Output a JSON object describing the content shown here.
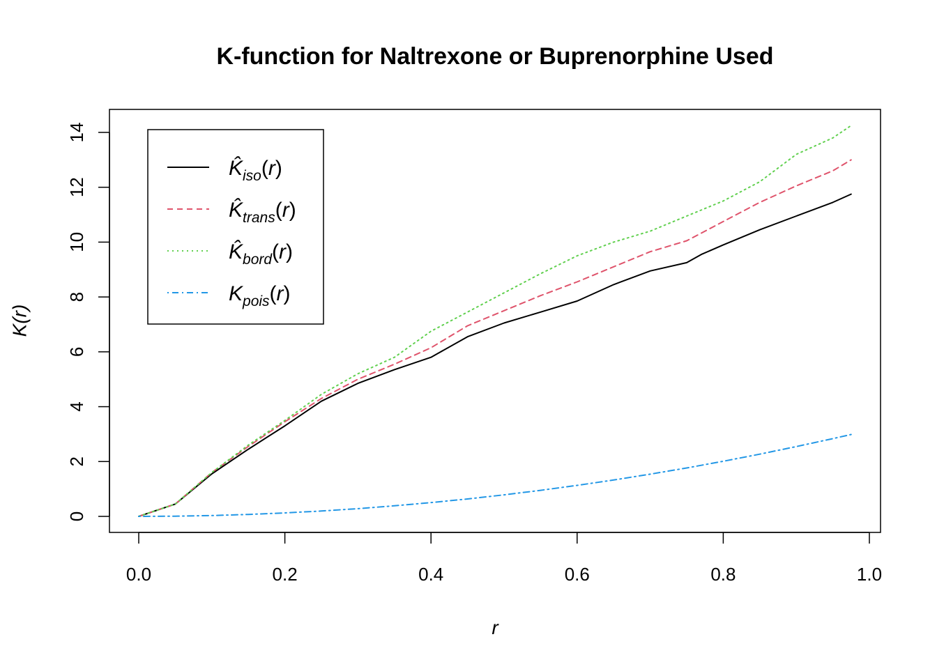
{
  "chart_data": {
    "type": "line",
    "title": "K-function for Naltrexone or Buprenorphine Used",
    "xlabel": "r",
    "ylabel": "K(r)",
    "xlim": [
      0.0,
      1.0
    ],
    "ylim": [
      0,
      14
    ],
    "x_ticks": [
      "0.0",
      "0.2",
      "0.4",
      "0.6",
      "0.8",
      "1.0"
    ],
    "y_ticks": [
      "0",
      "2",
      "4",
      "6",
      "8",
      "10",
      "12",
      "14"
    ],
    "grid": false,
    "legend_position": "top-left",
    "series": [
      {
        "name": "K̂iso(r)",
        "legend_main": "K̂",
        "legend_sub": "iso",
        "color": "#000000",
        "dash": "solid",
        "x": [
          0.0,
          0.05,
          0.1,
          0.15,
          0.2,
          0.25,
          0.3,
          0.35,
          0.4,
          0.45,
          0.5,
          0.55,
          0.6,
          0.65,
          0.7,
          0.75,
          0.77,
          0.8,
          0.85,
          0.9,
          0.95,
          0.975
        ],
        "y": [
          0.0,
          0.45,
          1.55,
          2.45,
          3.3,
          4.2,
          4.85,
          5.35,
          5.8,
          6.55,
          7.05,
          7.45,
          7.85,
          8.45,
          8.95,
          9.25,
          9.55,
          9.9,
          10.45,
          10.95,
          11.45,
          11.75
        ]
      },
      {
        "name": "K̂trans(r)",
        "legend_main": "K̂",
        "legend_sub": "trans",
        "color": "#DF536B",
        "dash": "dashed",
        "x": [
          0.0,
          0.05,
          0.1,
          0.15,
          0.2,
          0.25,
          0.3,
          0.35,
          0.4,
          0.45,
          0.5,
          0.55,
          0.6,
          0.65,
          0.7,
          0.75,
          0.8,
          0.85,
          0.9,
          0.95,
          0.975
        ],
        "y": [
          0.0,
          0.45,
          1.6,
          2.55,
          3.45,
          4.3,
          5.0,
          5.55,
          6.15,
          6.95,
          7.5,
          8.05,
          8.55,
          9.1,
          9.65,
          10.05,
          10.75,
          11.45,
          12.05,
          12.6,
          13.0
        ]
      },
      {
        "name": "K̂bord(r)",
        "legend_main": "K̂",
        "legend_sub": "bord",
        "color": "#61D04F",
        "dash": "dotted",
        "x": [
          0.0,
          0.05,
          0.1,
          0.15,
          0.2,
          0.25,
          0.3,
          0.35,
          0.4,
          0.45,
          0.5,
          0.55,
          0.6,
          0.65,
          0.7,
          0.75,
          0.8,
          0.85,
          0.9,
          0.95,
          0.975
        ],
        "y": [
          0.0,
          0.45,
          1.6,
          2.6,
          3.5,
          4.45,
          5.2,
          5.8,
          6.75,
          7.45,
          8.15,
          8.85,
          9.5,
          10.0,
          10.4,
          10.95,
          11.5,
          12.2,
          13.2,
          13.8,
          14.25
        ]
      },
      {
        "name": "Kpois(r)",
        "legend_main": "K",
        "legend_sub": "pois",
        "color": "#2297E6",
        "dash": "dotdash",
        "x": [
          0.0,
          0.05,
          0.1,
          0.15,
          0.2,
          0.25,
          0.3,
          0.35,
          0.4,
          0.45,
          0.5,
          0.55,
          0.6,
          0.65,
          0.7,
          0.75,
          0.8,
          0.85,
          0.9,
          0.95,
          0.975
        ],
        "y": [
          0.0,
          0.008,
          0.031,
          0.071,
          0.126,
          0.196,
          0.283,
          0.385,
          0.503,
          0.636,
          0.785,
          0.95,
          1.131,
          1.327,
          1.539,
          1.767,
          2.011,
          2.27,
          2.545,
          2.835,
          2.986
        ]
      }
    ]
  }
}
